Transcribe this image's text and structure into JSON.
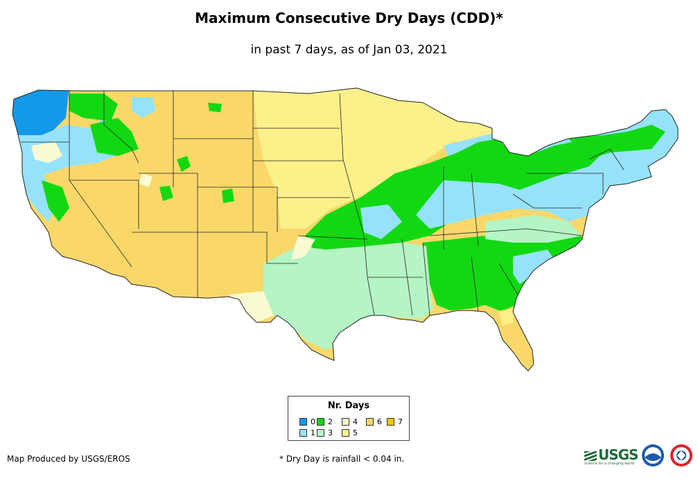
{
  "title": "Maximum Consecutive Dry Days (CDD)*",
  "subtitle": "in past 7 days, as of Jan 03, 2021",
  "legend": {
    "title": "Nr. Days",
    "items": [
      {
        "label": "0",
        "color": "#1499e8"
      },
      {
        "label": "1",
        "color": "#96e2fa"
      },
      {
        "label": "2",
        "color": "#12d812"
      },
      {
        "label": "3",
        "color": "#b5f4c4"
      },
      {
        "label": "4",
        "color": "#fafad2"
      },
      {
        "label": "5",
        "color": "#fcf08a"
      },
      {
        "label": "6",
        "color": "#f9d869"
      },
      {
        "label": "7",
        "color": "#f5c400"
      }
    ]
  },
  "credit": "Map Produced by USGS/EROS",
  "footnote": "* Dry Day is rainfall < 0.04 in.",
  "logos": {
    "usgs": "USGS",
    "usgs_tagline": "science for a changing world",
    "noaa": "noaa-logo",
    "nws": "nws-logo"
  }
}
